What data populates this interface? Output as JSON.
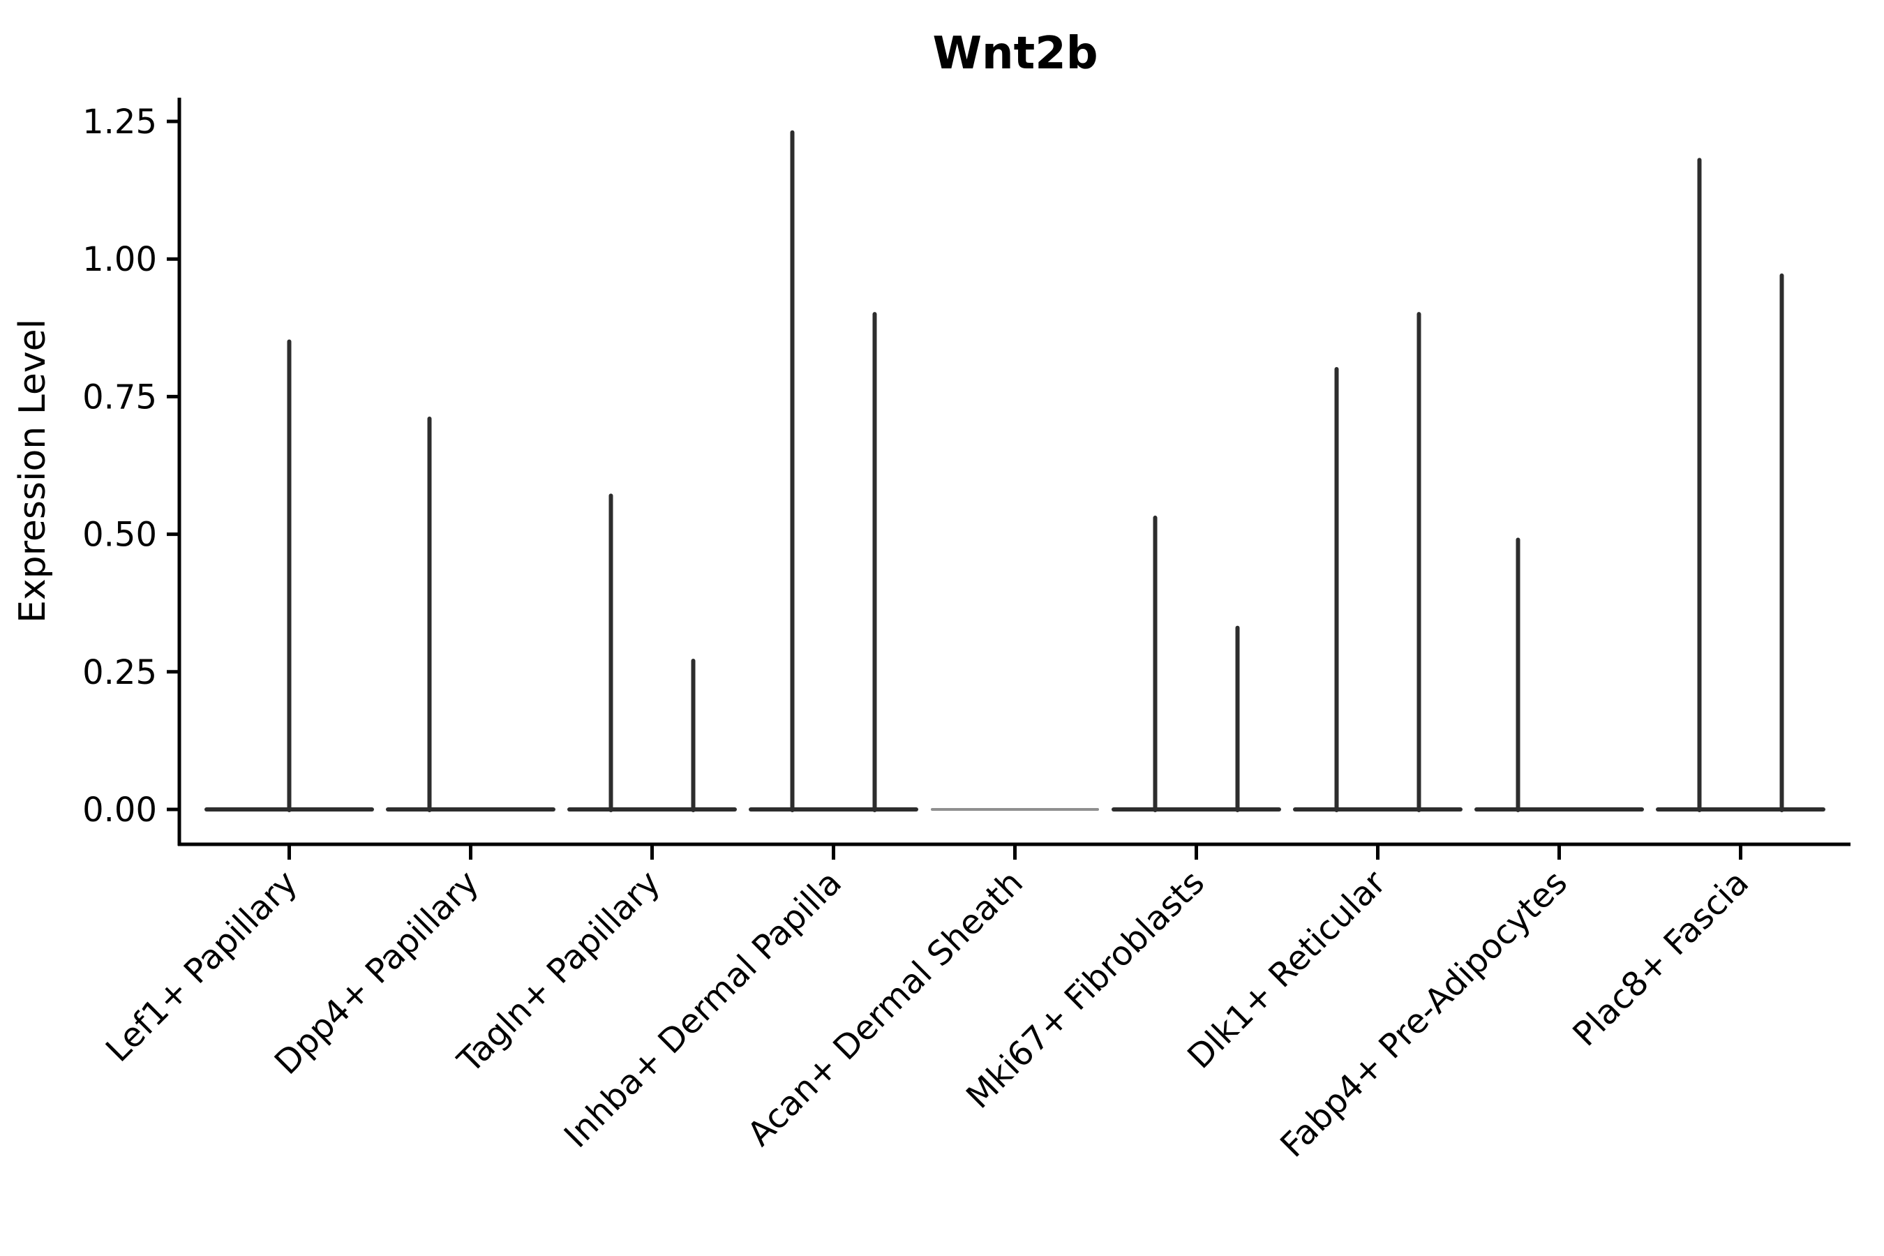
{
  "chart_data": {
    "type": "violin",
    "title": "Wnt2b",
    "ylabel": "Expression Level",
    "xlabel": "",
    "ylim": [
      0,
      1.25
    ],
    "ytick_labels": [
      "0.00",
      "0.25",
      "0.50",
      "0.75",
      "1.00",
      "1.25"
    ],
    "grid": false,
    "legend_position": "none",
    "categories": [
      "Lef1+ Papillary",
      "Dpp4+ Papillary",
      "Tagln+ Papillary",
      "Inhba+ Dermal Papilla",
      "Acan+ Dermal Sheath",
      "Mki67+ Fibroblasts",
      "Dlk1+ Reticular",
      "Fabp4+ Pre-Adipocytes",
      "Plac8+ Fascia"
    ],
    "groups": [
      {
        "category": "Lef1+ Papillary",
        "muted_baseline": false,
        "spikes": [
          {
            "dodge": "center",
            "peak": 0.85
          }
        ]
      },
      {
        "category": "Dpp4+ Papillary",
        "muted_baseline": false,
        "spikes": [
          {
            "dodge": "left",
            "peak": 0.71
          }
        ]
      },
      {
        "category": "Tagln+ Papillary",
        "muted_baseline": false,
        "spikes": [
          {
            "dodge": "left",
            "peak": 0.57
          },
          {
            "dodge": "right",
            "peak": 0.27
          }
        ]
      },
      {
        "category": "Inhba+ Dermal Papilla",
        "muted_baseline": false,
        "spikes": [
          {
            "dodge": "left",
            "peak": 1.23
          },
          {
            "dodge": "right",
            "peak": 0.9
          }
        ]
      },
      {
        "category": "Acan+ Dermal Sheath",
        "muted_baseline": true,
        "spikes": []
      },
      {
        "category": "Mki67+ Fibroblasts",
        "muted_baseline": false,
        "spikes": [
          {
            "dodge": "left",
            "peak": 0.53
          },
          {
            "dodge": "right",
            "peak": 0.33
          }
        ]
      },
      {
        "category": "Dlk1+ Reticular",
        "muted_baseline": false,
        "spikes": [
          {
            "dodge": "left",
            "peak": 0.8
          },
          {
            "dodge": "right",
            "peak": 0.9
          }
        ]
      },
      {
        "category": "Fabp4+ Pre-Adipocytes",
        "muted_baseline": false,
        "spikes": [
          {
            "dodge": "left",
            "peak": 0.49
          }
        ]
      },
      {
        "category": "Plac8+ Fascia",
        "muted_baseline": false,
        "spikes": [
          {
            "dodge": "left",
            "peak": 1.18
          },
          {
            "dodge": "right",
            "peak": 0.97
          }
        ]
      }
    ],
    "colors": {
      "violin_line": "#2d2d2d",
      "muted_zero_line": "#8f8f8f",
      "axis": "#000000",
      "text": "#000000",
      "background": "#ffffff"
    }
  }
}
